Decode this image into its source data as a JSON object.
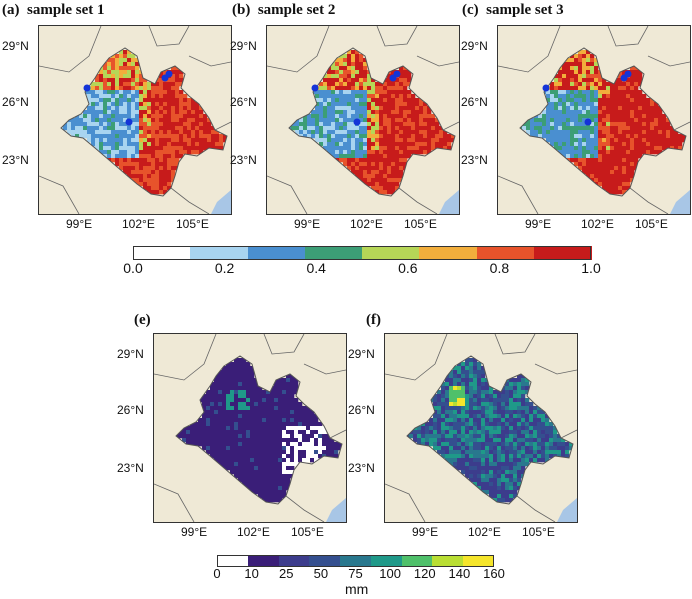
{
  "top_panels": [
    {
      "label": "(a)",
      "title": "sample set 1"
    },
    {
      "label": "(b)",
      "title": "sample set 2"
    },
    {
      "label": "(c)",
      "title": "sample set 3"
    }
  ],
  "bottom_panels": [
    {
      "label": "(e)"
    },
    {
      "label": "(f)"
    }
  ],
  "lat_labels": [
    "29°N",
    "26°N",
    "23°N"
  ],
  "lon_labels": [
    "99°E",
    "102°E",
    "105°E"
  ],
  "colorbar_top": {
    "ticks": [
      "0.0",
      "0.2",
      "0.4",
      "0.6",
      "0.8",
      "1.0"
    ],
    "colors": [
      "#ffffff",
      "#a8d4f0",
      "#4a8fd0",
      "#3c9e76",
      "#b6d657",
      "#f2ae3c",
      "#e7532b",
      "#c71b1b"
    ]
  },
  "colorbar_bottom": {
    "ticks": [
      "0",
      "10",
      "25",
      "50",
      "75",
      "100",
      "120",
      "140",
      "160"
    ],
    "colors": [
      "#ffffff",
      "#3a1e78",
      "#3c3c8c",
      "#344f8f",
      "#29788e",
      "#1f9989",
      "#4fc06a",
      "#b9de33",
      "#f5e52b"
    ],
    "unit": "mm"
  },
  "colors": {
    "map_background": "#efe9d6",
    "sea": "#a8c6e6",
    "station_marker": "#1434d8",
    "border_line": "#666666"
  }
}
